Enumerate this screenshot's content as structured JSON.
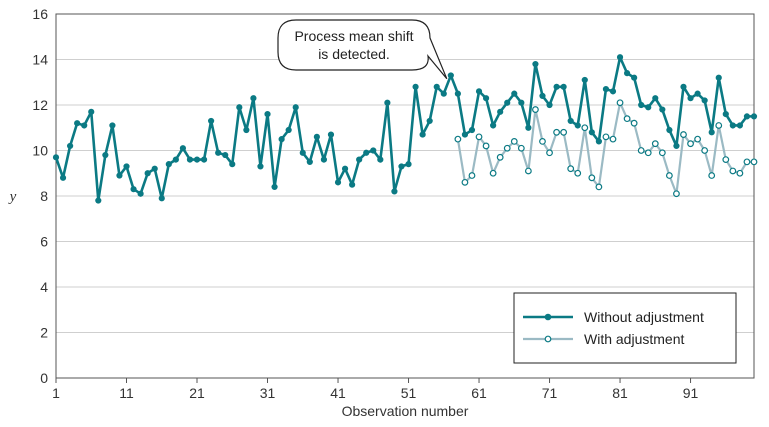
{
  "chart_data": {
    "type": "line",
    "title": "",
    "xlabel": "Observation number",
    "ylabel": "y",
    "xlim": [
      1,
      100
    ],
    "ylim": [
      0,
      16
    ],
    "xticks": [
      1,
      11,
      21,
      31,
      41,
      51,
      61,
      71,
      81,
      91
    ],
    "yticks": [
      0,
      2,
      4,
      6,
      8,
      10,
      12,
      14,
      16
    ],
    "grid": "horizontal",
    "legend_position": "bottom-right",
    "annotation": {
      "lines": [
        "Process mean shift",
        "is detected."
      ],
      "points_to": [
        57,
        12.8
      ]
    },
    "series": [
      {
        "name": "Without adjustment",
        "color": "#0b7a84",
        "marker": "filled-circle",
        "x": [
          1,
          2,
          3,
          4,
          5,
          6,
          7,
          8,
          9,
          10,
          11,
          12,
          13,
          14,
          15,
          16,
          17,
          18,
          19,
          20,
          21,
          22,
          23,
          24,
          25,
          26,
          27,
          28,
          29,
          30,
          31,
          32,
          33,
          34,
          35,
          36,
          37,
          38,
          39,
          40,
          41,
          42,
          43,
          44,
          45,
          46,
          47,
          48,
          49,
          50,
          51,
          52,
          53,
          54,
          55,
          56,
          57,
          58,
          59,
          60,
          61,
          62,
          63,
          64,
          65,
          66,
          67,
          68,
          69,
          70,
          71,
          72,
          73,
          74,
          75,
          76,
          77,
          78,
          79,
          80,
          81,
          82,
          83,
          84,
          85,
          86,
          87,
          88,
          89,
          90,
          91,
          92,
          93,
          94,
          95,
          96,
          97,
          98,
          99,
          100
        ],
        "values": [
          9.7,
          8.8,
          10.2,
          11.2,
          11.1,
          11.7,
          7.8,
          9.8,
          11.1,
          8.9,
          9.3,
          8.3,
          8.1,
          9.0,
          9.2,
          7.9,
          9.4,
          9.6,
          10.1,
          9.6,
          9.6,
          9.6,
          11.3,
          9.9,
          9.8,
          9.4,
          11.9,
          10.9,
          12.3,
          9.3,
          11.6,
          8.4,
          10.5,
          10.9,
          11.9,
          9.9,
          9.5,
          10.6,
          9.6,
          10.7,
          8.6,
          9.2,
          8.5,
          9.6,
          9.9,
          10.0,
          9.6,
          12.1,
          8.2,
          9.3,
          9.4,
          12.8,
          10.7,
          11.3,
          12.8,
          12.5,
          13.3,
          12.5,
          10.7,
          10.9,
          12.6,
          12.3,
          11.1,
          11.7,
          12.1,
          12.5,
          12.1,
          11.0,
          13.8,
          12.4,
          12.0,
          12.8,
          12.8,
          11.3,
          11.1,
          13.1,
          10.8,
          10.4,
          12.7,
          12.6,
          14.1,
          13.4,
          13.2,
          12.0,
          11.9,
          12.3,
          11.8,
          10.9,
          10.2,
          12.8,
          12.3,
          12.5,
          12.2,
          10.8,
          13.2,
          11.6,
          11.1,
          11.1,
          11.5,
          11.5
        ]
      },
      {
        "name": "With adjustment",
        "color": "#9bbac4",
        "marker": "open-circle",
        "x": [
          58,
          59,
          60,
          61,
          62,
          63,
          64,
          65,
          66,
          67,
          68,
          69,
          70,
          71,
          72,
          73,
          74,
          75,
          76,
          77,
          78,
          79,
          80,
          81,
          82,
          83,
          84,
          85,
          86,
          87,
          88,
          89,
          90,
          91,
          92,
          93,
          94,
          95,
          96,
          97,
          98,
          99,
          100
        ],
        "values": [
          10.5,
          8.6,
          8.9,
          10.6,
          10.2,
          9.0,
          9.7,
          10.1,
          10.4,
          10.1,
          9.1,
          11.8,
          10.4,
          9.9,
          10.8,
          10.8,
          9.2,
          9.0,
          11.0,
          8.8,
          8.4,
          10.6,
          10.5,
          12.1,
          11.4,
          11.2,
          10.0,
          9.9,
          10.3,
          9.9,
          8.9,
          8.1,
          10.7,
          10.3,
          10.5,
          10.0,
          8.9,
          11.1,
          9.6,
          9.1,
          9.0,
          9.5,
          9.5
        ]
      }
    ]
  }
}
